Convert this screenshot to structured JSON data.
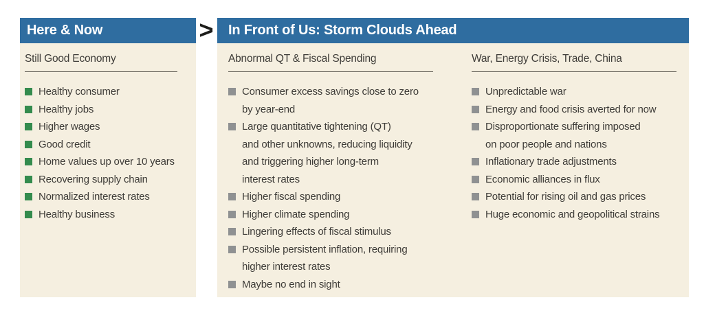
{
  "connector": {
    "symbol": ">"
  },
  "now_panel": {
    "title": "Here & Now",
    "section": {
      "heading": "Still Good Economy",
      "items": [
        "Healthy consumer",
        "Healthy jobs",
        "Higher wages",
        "Good credit",
        "Home values up over 10 years",
        "Recovering supply chain",
        "Normalized interest rates",
        "Healthy business"
      ]
    }
  },
  "future_panel": {
    "title": "In Front of Us: Storm Clouds Ahead",
    "columns": [
      {
        "heading": "Abnormal QT & Fiscal Spending",
        "items": [
          "Consumer excess savings close to zero\nby year-end",
          "Large quantitative tightening (QT)\nand other unknowns, reducing liquidity\nand triggering higher long-term\ninterest rates",
          "Higher fiscal spending",
          "Higher climate spending",
          "Lingering effects of fiscal stimulus",
          "Possible persistent inflation, requiring\nhigher interest rates",
          "Maybe no end in sight"
        ]
      },
      {
        "heading": "War, Energy Crisis, Trade, China",
        "items": [
          "Unpredictable war",
          "Energy and food crisis averted for now",
          "Disproportionate suffering imposed\non poor people and nations",
          "Inflationary trade adjustments",
          "Economic alliances in flux",
          "Potential for rising oil and gas prices",
          "Huge economic and geopolitical strains"
        ]
      }
    ]
  },
  "colors": {
    "header_blue": "#2f6da0",
    "panel_background": "#f5efe0",
    "bullet_green": "#348b4d",
    "bullet_gray": "#8f9192",
    "text_dark": "#3e3c38",
    "connector_dark": "#1d1d1b"
  }
}
